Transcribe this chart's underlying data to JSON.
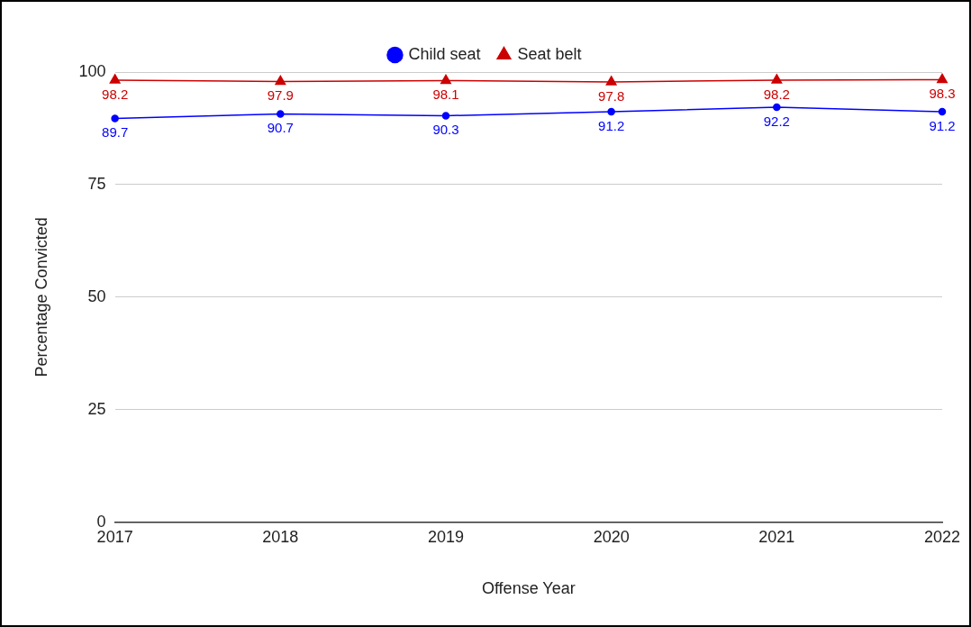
{
  "chart_data": {
    "type": "line",
    "xlabel": "Offense Year",
    "ylabel": "Percentage Convicted",
    "categories": [
      "2017",
      "2018",
      "2019",
      "2020",
      "2021",
      "2022"
    ],
    "series": [
      {
        "name": "Child seat",
        "color": "#0000ff",
        "marker": "circle",
        "values": [
          89.7,
          90.7,
          90.3,
          91.2,
          92.2,
          91.2
        ]
      },
      {
        "name": "Seat belt",
        "color": "#cc0000",
        "marker": "triangle",
        "values": [
          98.2,
          97.9,
          98.1,
          97.8,
          98.2,
          98.3
        ]
      }
    ],
    "ylim": [
      0,
      100
    ],
    "yticks": [
      0,
      25,
      50,
      75,
      100
    ],
    "grid": "y",
    "legend": "top",
    "data_labels": true
  }
}
